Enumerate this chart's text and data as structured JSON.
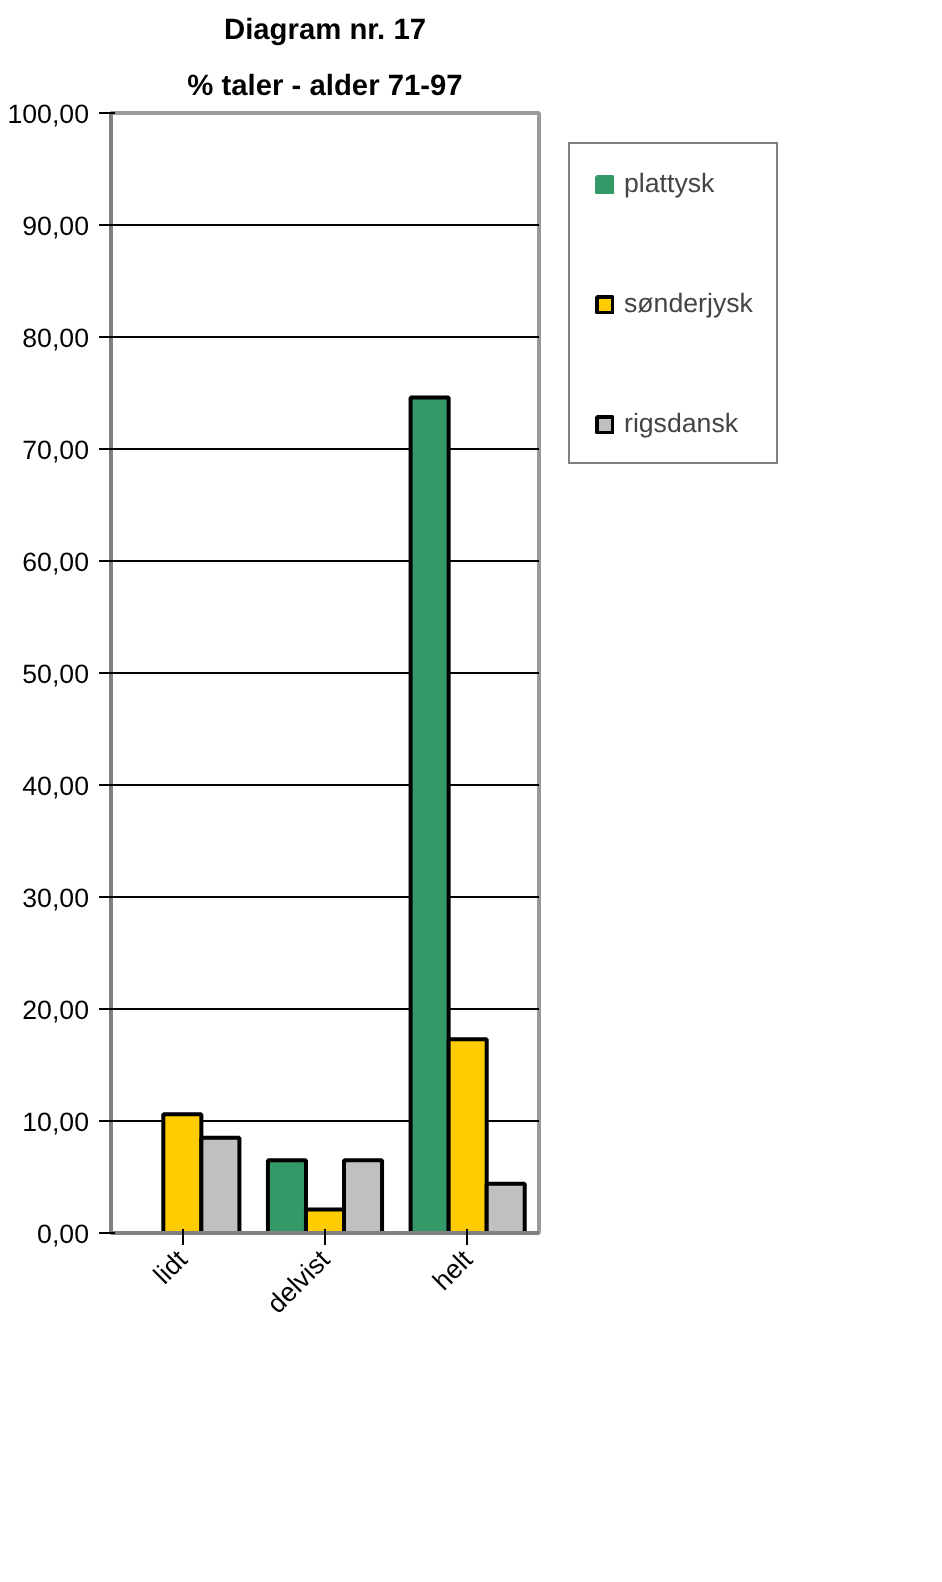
{
  "chart_data": {
    "type": "bar",
    "title": "Diagram nr. 17",
    "subtitle": "% taler - alder 71-97",
    "categories": [
      "lidt",
      "delvist",
      "helt"
    ],
    "series": [
      {
        "name": "plattysk",
        "color": "#339966",
        "values": [
          0,
          6.5,
          74.6
        ]
      },
      {
        "name": "sønderjysk",
        "color": "#ffcc00",
        "values": [
          10.6,
          2.1,
          17.3
        ]
      },
      {
        "name": "rigsdansk",
        "color": "#c0c0c0",
        "values": [
          8.5,
          6.5,
          4.4
        ]
      }
    ],
    "ylim": [
      0,
      100
    ],
    "yticks": [
      {
        "value": 0,
        "label": "0,00"
      },
      {
        "value": 10,
        "label": "10,00"
      },
      {
        "value": 20,
        "label": "20,00"
      },
      {
        "value": 30,
        "label": "30,00"
      },
      {
        "value": 40,
        "label": "40,00"
      },
      {
        "value": 50,
        "label": "50,00"
      },
      {
        "value": 60,
        "label": "60,00"
      },
      {
        "value": 70,
        "label": "70,00"
      },
      {
        "value": 80,
        "label": "80,00"
      },
      {
        "value": 90,
        "label": "90,00"
      },
      {
        "value": 100,
        "label": "100,00"
      }
    ],
    "grid": "y",
    "legend": "right"
  }
}
